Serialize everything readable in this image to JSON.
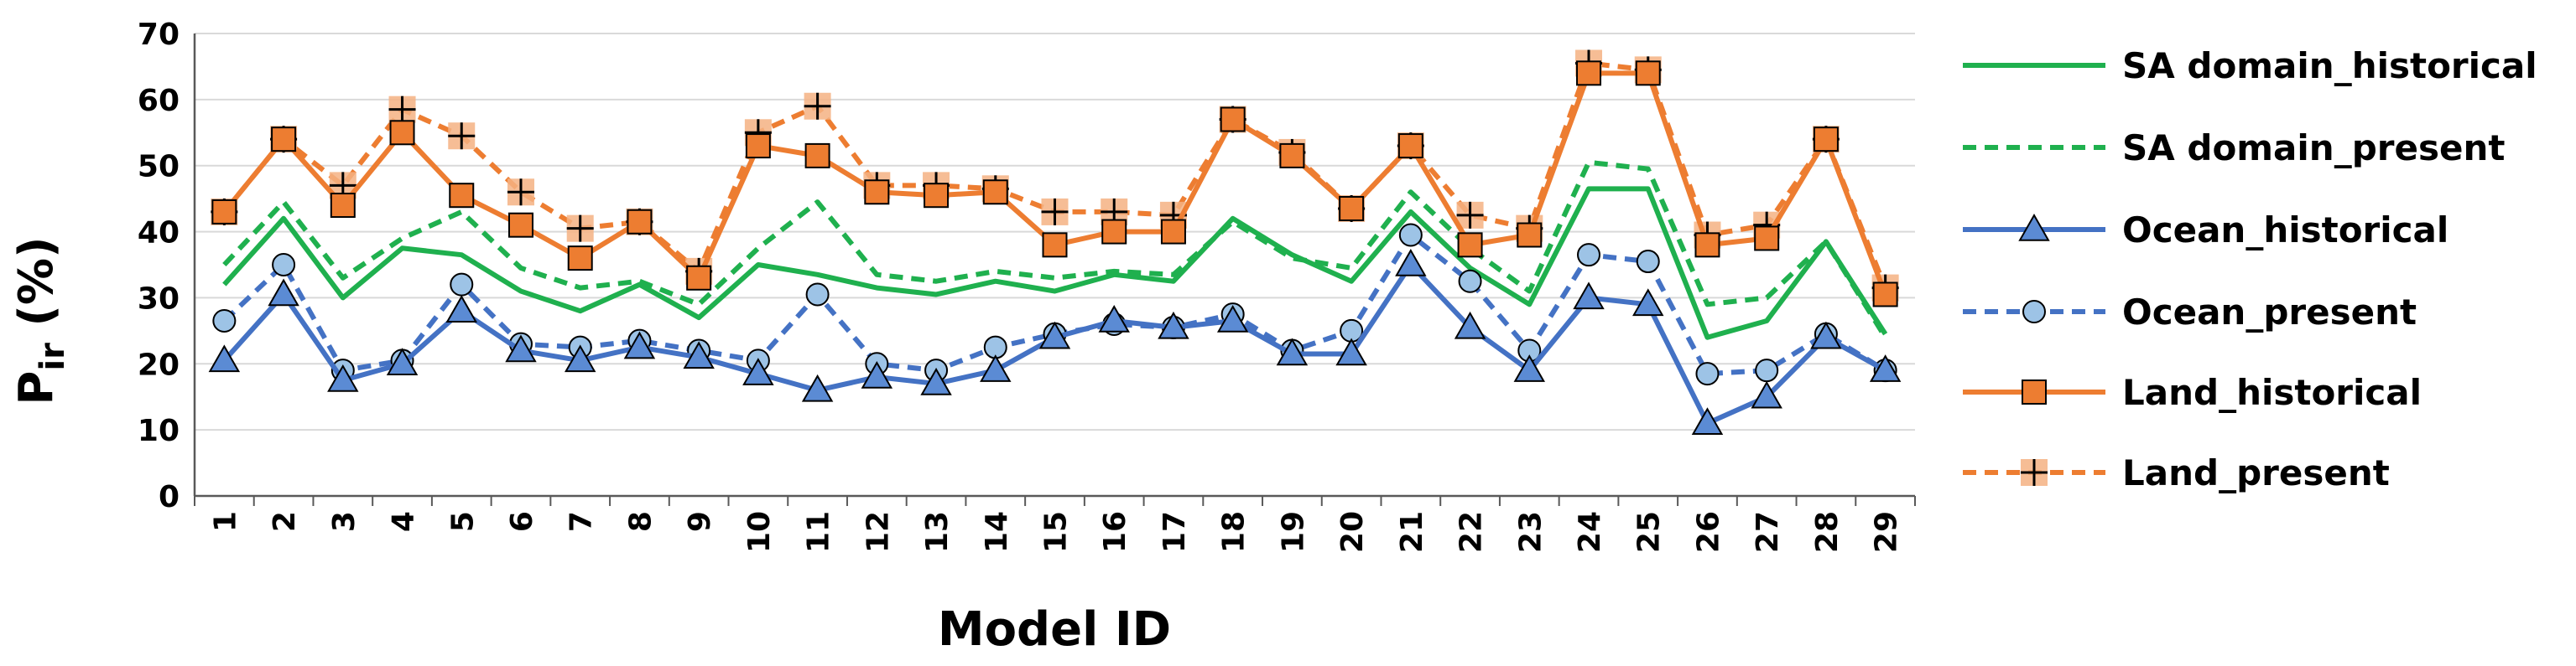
{
  "chart_data": {
    "type": "line",
    "title": "",
    "xlabel": "Model ID",
    "ylabel": "P",
    "ylabel_subscript": "ir",
    "ylabel_suffix": " (%)",
    "ylim": [
      0,
      70
    ],
    "yticks": [
      0,
      10,
      20,
      30,
      40,
      50,
      60,
      70
    ],
    "grid": true,
    "legend_position": "right",
    "categories": [
      "1",
      "2",
      "3",
      "4",
      "5",
      "6",
      "7",
      "8",
      "9",
      "10",
      "11",
      "12",
      "13",
      "14",
      "15",
      "16",
      "17",
      "18",
      "19",
      "20",
      "21",
      "22",
      "23",
      "24",
      "25",
      "26",
      "27",
      "28",
      "29"
    ],
    "series": [
      {
        "name": "SA domain_historical",
        "color": "#1fb04e",
        "dash": "solid",
        "marker": "none",
        "values": [
          32,
          42,
          30,
          37.5,
          36.5,
          31,
          28,
          32,
          27,
          35,
          33.5,
          31.5,
          30.5,
          32.5,
          31,
          33.5,
          32.5,
          42,
          36.5,
          32.5,
          43,
          34.5,
          29,
          46.5,
          46.5,
          24,
          26.5,
          38.5,
          24.5
        ]
      },
      {
        "name": "SA domain_present",
        "color": "#1fb04e",
        "dash": "dashed",
        "marker": "none",
        "values": [
          35,
          44.5,
          33,
          39,
          43,
          34.5,
          31.5,
          32.5,
          29,
          37.5,
          44.5,
          33.5,
          32.5,
          34,
          33,
          34,
          33.5,
          41.5,
          36,
          34.5,
          46,
          37.5,
          31,
          50.5,
          49.5,
          29,
          30,
          38.5,
          24
        ]
      },
      {
        "name": "Ocean_historical",
        "color": "#4472c4",
        "dash": "solid",
        "marker": "triangle",
        "values": [
          20.5,
          30.5,
          17.5,
          20,
          28,
          22,
          20.5,
          22.5,
          21,
          18.5,
          16,
          18,
          17,
          19,
          24,
          26.5,
          25.5,
          26.5,
          21.5,
          21.5,
          35,
          25.5,
          19,
          30,
          29,
          11,
          15,
          24,
          19
        ]
      },
      {
        "name": "Ocean_present",
        "color": "#4472c4",
        "dash": "dashed",
        "marker": "circle",
        "values": [
          26.5,
          35,
          19,
          20.5,
          32,
          23,
          22.5,
          23.5,
          22,
          20.5,
          30.5,
          20,
          19,
          22.5,
          24.5,
          26,
          25.5,
          27.5,
          22,
          25,
          39.5,
          32.5,
          22,
          36.5,
          35.5,
          18.5,
          19,
          24.5,
          19
        ]
      },
      {
        "name": "Land_historical",
        "color": "#ed7d31",
        "dash": "solid",
        "marker": "square",
        "values": [
          43,
          54,
          44,
          55,
          45.5,
          41,
          36,
          41.5,
          33,
          53,
          51.5,
          46,
          45.5,
          46,
          38,
          40,
          40,
          57,
          51.5,
          43.5,
          53,
          38,
          39.5,
          64,
          64,
          38,
          39,
          54,
          30.5
        ]
      },
      {
        "name": "Land_present",
        "color": "#ed7d31",
        "dash": "dashed",
        "marker": "plus",
        "values": [
          43,
          54,
          47,
          58.5,
          54.5,
          46,
          40.5,
          41.5,
          34,
          55,
          59,
          47,
          47,
          46.5,
          43,
          43,
          42.5,
          57,
          52,
          43.5,
          53,
          42.5,
          40.5,
          65.5,
          64.5,
          39.5,
          41,
          54,
          31.5
        ]
      }
    ]
  }
}
